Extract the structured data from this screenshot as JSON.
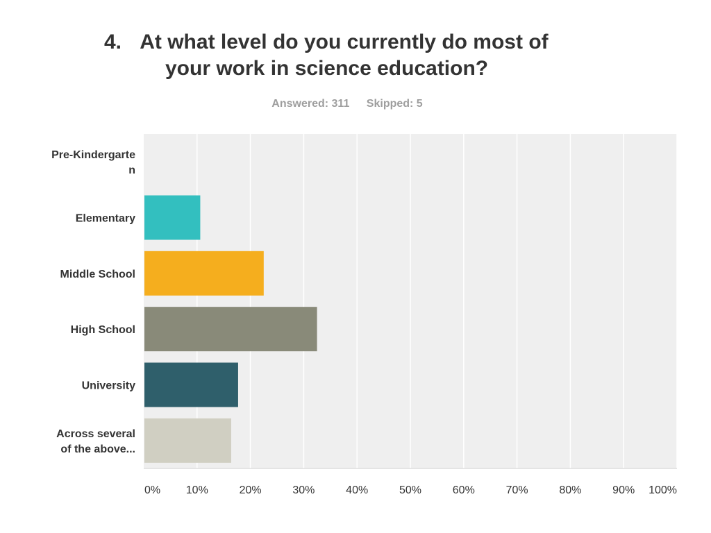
{
  "question": {
    "number": "4.",
    "title_line1": "At what level do you currently do most of",
    "title_line2": "your work in science education?"
  },
  "stats": {
    "answered": "Answered: 311",
    "skipped": "Skipped: 5"
  },
  "chart_data": {
    "type": "bar",
    "orientation": "horizontal",
    "categories": [
      [
        "Pre-Kindergarte",
        "n"
      ],
      [
        "Elementary"
      ],
      [
        "Middle School"
      ],
      [
        "High School"
      ],
      [
        "University"
      ],
      [
        "Across several",
        "of the above..."
      ]
    ],
    "values": [
      0,
      10.6,
      22.5,
      32.5,
      17.7,
      16.4
    ],
    "colors": [
      "#33bfbf",
      "#33bfbf",
      "#f5ae1e",
      "#898a79",
      "#2f5f6b",
      "#d0cfc2"
    ],
    "xlim": [
      0,
      100
    ],
    "ticks": [
      0,
      10,
      20,
      30,
      40,
      50,
      60,
      70,
      80,
      90,
      100
    ],
    "tick_labels": [
      "0%",
      "10%",
      "20%",
      "30%",
      "40%",
      "50%",
      "60%",
      "70%",
      "80%",
      "90%",
      "100%"
    ],
    "grid": true,
    "plot_background": "#efefef",
    "grid_color": "#ffffff"
  }
}
